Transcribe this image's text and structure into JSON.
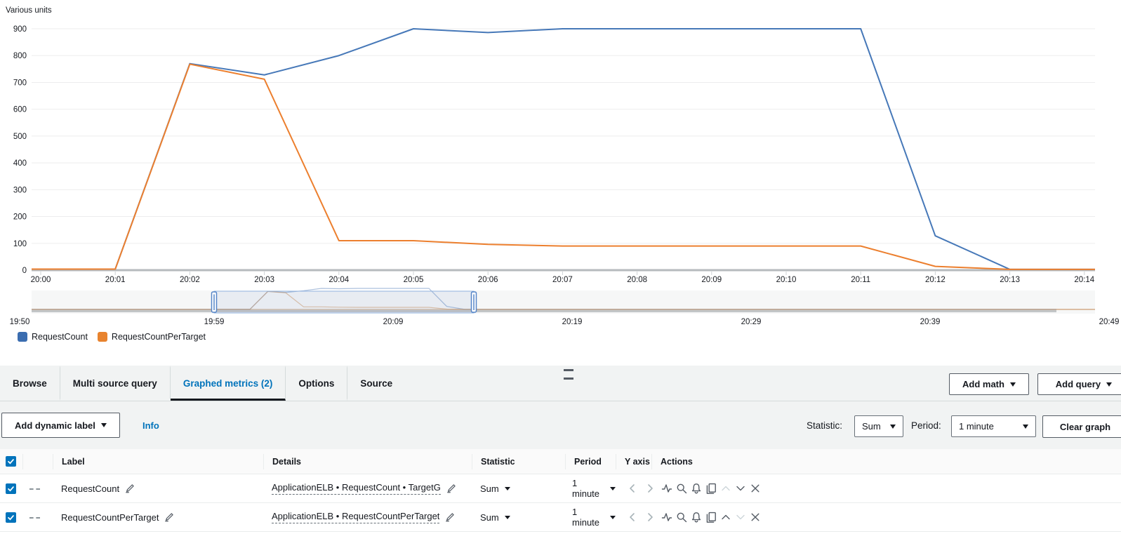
{
  "chart_data": {
    "type": "line",
    "title": "",
    "ylabel": "Various units",
    "x": [
      "20:00",
      "20:01",
      "20:02",
      "20:03",
      "20:04",
      "20:05",
      "20:06",
      "20:07",
      "20:08",
      "20:09",
      "20:10",
      "20:11",
      "20:12",
      "20:13",
      "20:14"
    ],
    "ylim": [
      0,
      900
    ],
    "yticks": [
      0,
      100,
      200,
      300,
      400,
      500,
      600,
      700,
      800,
      900
    ],
    "grid": true,
    "legend_position": "bottom-left",
    "series": [
      {
        "name": "RequestCount",
        "color": "#4678b8",
        "values": [
          4,
          4,
          770,
          728,
          800,
          900,
          886,
          900,
          900,
          900,
          900,
          900,
          128,
          3,
          3
        ]
      },
      {
        "name": "RequestCountPerTarget",
        "color": "#ec7f2e",
        "values": [
          4,
          4,
          768,
          712,
          110,
          110,
          96,
          90,
          90,
          90,
          90,
          90,
          14,
          3,
          3
        ]
      }
    ],
    "navigator": {
      "labels": [
        "19:50",
        "19:59",
        "20:09",
        "20:19",
        "20:29",
        "20:39",
        "20:49"
      ]
    }
  },
  "tabs": {
    "items": [
      "Browse",
      "Multi source query",
      "Graphed metrics (2)",
      "Options",
      "Source"
    ],
    "active": "Graphed metrics (2)"
  },
  "tab_actions": {
    "add_math": "Add math",
    "add_query": "Add query"
  },
  "toolbar": {
    "add_dynamic_label": "Add dynamic label",
    "info": "Info",
    "statistic_label": "Statistic:",
    "statistic_value": "Sum",
    "period_label": "Period:",
    "period_value": "1 minute",
    "clear_graph": "Clear graph"
  },
  "table": {
    "headers": [
      "Label",
      "Details",
      "Statistic",
      "Period",
      "Y axis",
      "Actions"
    ],
    "rows": [
      {
        "label": "RequestCount",
        "details": "ApplicationELB • RequestCount • TargetG",
        "statistic": "Sum",
        "period": "1 minute",
        "color": "#3b6db0"
      },
      {
        "label": "RequestCountPerTarget",
        "details": "ApplicationELB • RequestCountPerTarget",
        "statistic": "Sum",
        "period": "1 minute",
        "color": "#e8832e"
      }
    ]
  }
}
